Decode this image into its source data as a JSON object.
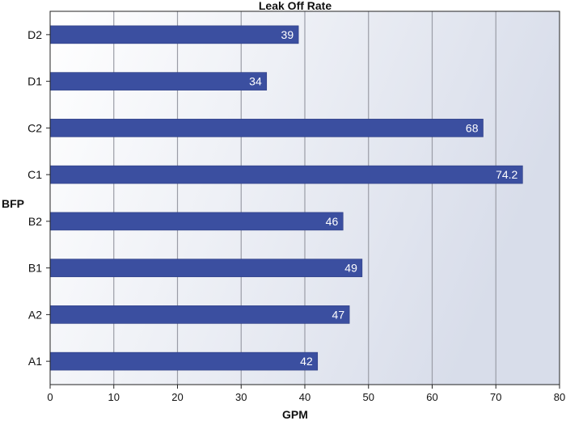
{
  "chart_data": {
    "type": "bar",
    "orientation": "horizontal",
    "title": "Leak Off Rate",
    "xlabel": "GPM",
    "ylabel": "BFP",
    "categories": [
      "D2",
      "D1",
      "C2",
      "C1",
      "B2",
      "B1",
      "A2",
      "A1"
    ],
    "values": [
      39,
      34,
      68,
      74.2,
      46,
      49,
      47,
      42
    ],
    "value_labels": [
      "39",
      "34",
      "68",
      "74.2",
      "46",
      "49",
      "47",
      "42"
    ],
    "xlim": [
      0,
      80
    ],
    "xticks": [
      "0",
      "10",
      "20",
      "30",
      "40",
      "50",
      "60",
      "70",
      "80"
    ],
    "grid": "vertical",
    "bar_color": "#3b4fa0",
    "plot_background": [
      "#ffffff",
      "#d8ddea"
    ]
  }
}
